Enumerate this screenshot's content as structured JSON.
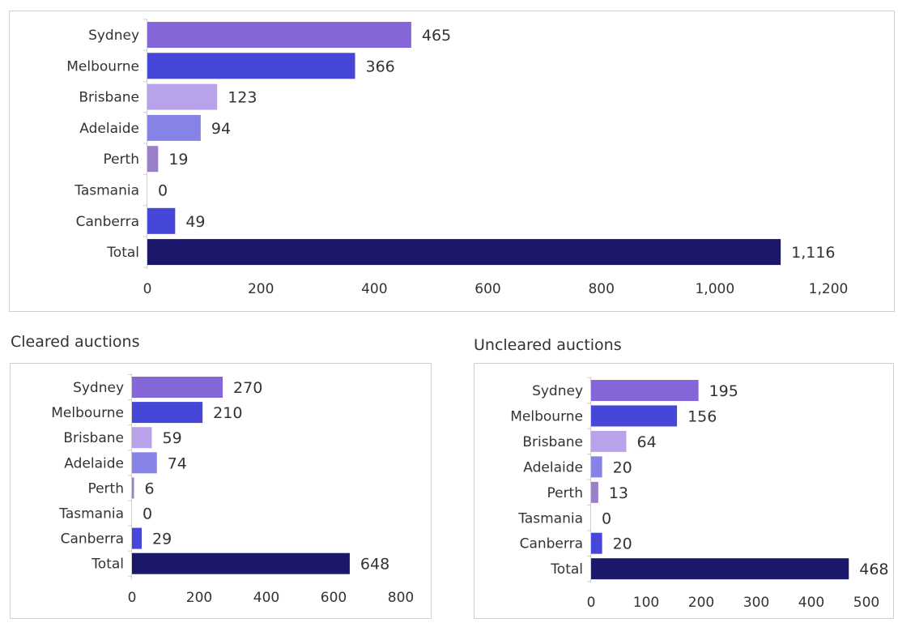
{
  "sections": {
    "cleared_title": "Cleared auctions",
    "uncleared_title": "Uncleared auctions"
  },
  "colors": {
    "Sydney": "#8466d9",
    "Melbourne": "#4646d8",
    "Brisbane": "#b8a3ea",
    "Adelaide": "#8683e6",
    "Perth": "#9b7fc7",
    "Tasmania": "#c9c2ee",
    "Canberra": "#4646d8",
    "Total": "#1b186b",
    "axis_line": "#cfcfcf"
  },
  "chart_data": [
    {
      "id": "total-auctions",
      "type": "bar",
      "orientation": "horizontal",
      "categories": [
        "Sydney",
        "Melbourne",
        "Brisbane",
        "Adelaide",
        "Perth",
        "Tasmania",
        "Canberra",
        "Total"
      ],
      "values": [
        465,
        366,
        123,
        94,
        19,
        0,
        49,
        1116
      ],
      "value_labels": [
        "465",
        "366",
        "123",
        "94",
        "19",
        "0",
        "49",
        "1,116"
      ],
      "xlim": [
        0,
        1200
      ],
      "xticks": [
        0,
        200,
        400,
        600,
        800,
        1000,
        1200
      ],
      "xtick_labels": [
        "0",
        "200",
        "400",
        "600",
        "800",
        "1,000",
        "1,200"
      ],
      "grid": false,
      "legend": "none"
    },
    {
      "id": "cleared-auctions",
      "type": "bar",
      "orientation": "horizontal",
      "title": "Cleared auctions",
      "categories": [
        "Sydney",
        "Melbourne",
        "Brisbane",
        "Adelaide",
        "Perth",
        "Tasmania",
        "Canberra",
        "Total"
      ],
      "values": [
        270,
        210,
        59,
        74,
        6,
        0,
        29,
        648
      ],
      "value_labels": [
        "270",
        "210",
        "59",
        "74",
        "6",
        "0",
        "29",
        "648"
      ],
      "xlim": [
        0,
        800
      ],
      "xticks": [
        0,
        200,
        400,
        600,
        800
      ],
      "xtick_labels": [
        "0",
        "200",
        "400",
        "600",
        "800"
      ],
      "grid": false,
      "legend": "none"
    },
    {
      "id": "uncleared-auctions",
      "type": "bar",
      "orientation": "horizontal",
      "title": "Uncleared auctions",
      "categories": [
        "Sydney",
        "Melbourne",
        "Brisbane",
        "Adelaide",
        "Perth",
        "Tasmania",
        "Canberra",
        "Total"
      ],
      "values": [
        195,
        156,
        64,
        20,
        13,
        0,
        20,
        468
      ],
      "value_labels": [
        "195",
        "156",
        "64",
        "20",
        "13",
        "0",
        "20",
        "468"
      ],
      "xlim": [
        0,
        500
      ],
      "xticks": [
        0,
        100,
        200,
        300,
        400,
        500
      ],
      "xtick_labels": [
        "0",
        "100",
        "200",
        "300",
        "400",
        "500"
      ],
      "grid": false,
      "legend": "none"
    }
  ]
}
